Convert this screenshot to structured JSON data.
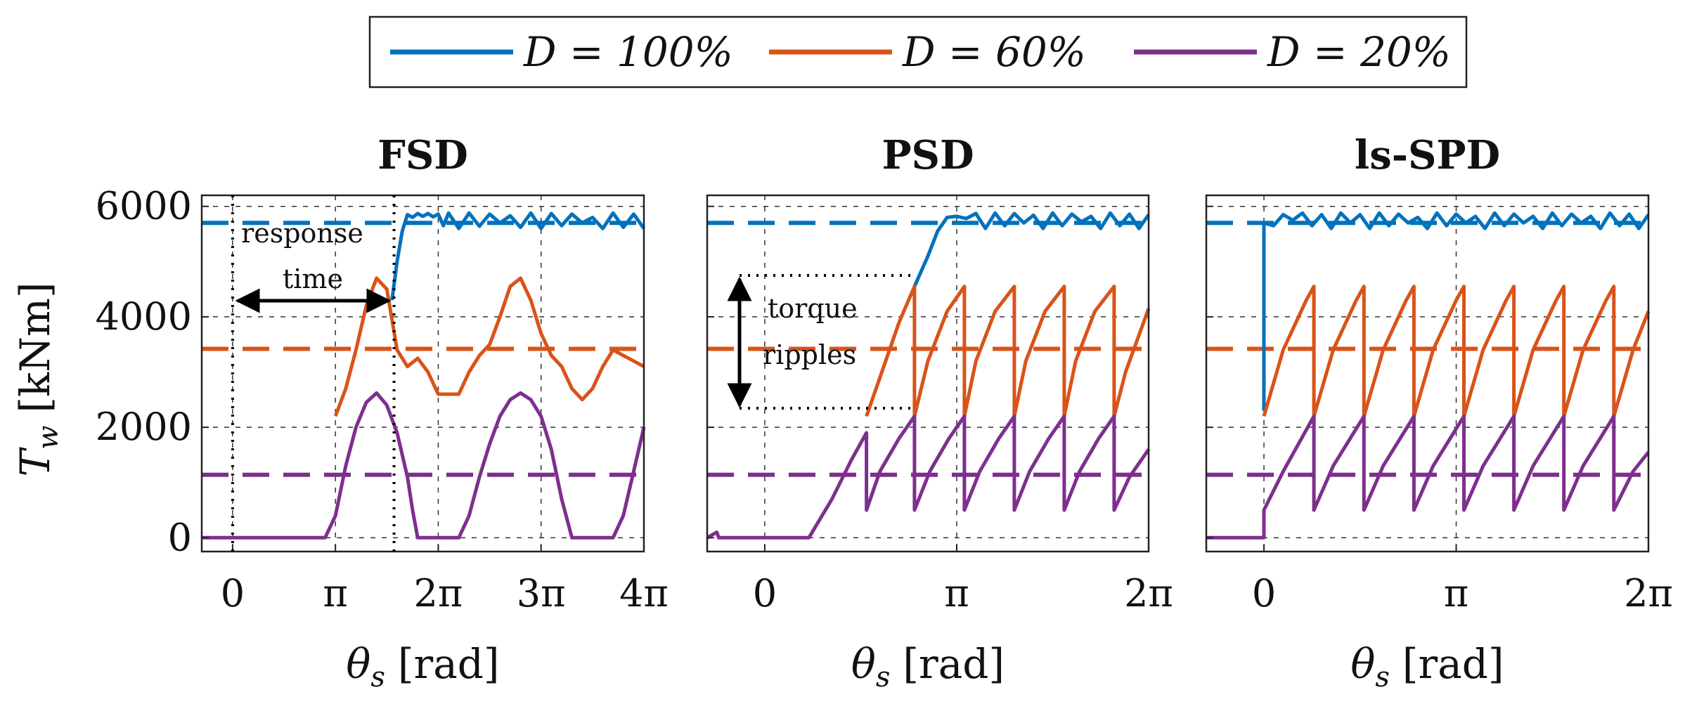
{
  "legend": {
    "placement": "top-center",
    "entries": [
      {
        "label": "D = 100%",
        "color": "#0072BD"
      },
      {
        "label": "D = 60%",
        "color": "#D95319"
      },
      {
        "label": "D = 20%",
        "color": "#7E2F8E"
      }
    ]
  },
  "ylabel": "T_w [kNm]",
  "ylabel_italic": "T",
  "ylabel_sub": "w",
  "ylabel_unit": "[kNm]",
  "xlabel_theta": "θ",
  "xlabel_sub": "s",
  "xlabel_unit": "[rad]",
  "annotations": {
    "response_1": "response",
    "response_2": "time",
    "torque_1": "torque",
    "torque_2": "ripples"
  },
  "chart_data": [
    {
      "type": "line",
      "title": "FSD",
      "xlabel": "θs [rad]",
      "ylabel": "Tw [kNm]",
      "xlim_pi": [
        -0.3,
        4
      ],
      "ylim": [
        -250,
        6200
      ],
      "xticks": [
        0,
        1,
        2,
        3,
        4
      ],
      "xtick_labels": [
        "0",
        "π",
        "2π",
        "3π",
        "4π"
      ],
      "yticks": [
        0,
        2000,
        4000,
        6000
      ],
      "ytick_labels": [
        "0",
        "2000",
        "4000",
        "6000"
      ],
      "average_lines": [
        5700,
        3420,
        1140
      ],
      "series": [
        {
          "name": "D = 100%",
          "x_pi": [
            1.55,
            1.6,
            1.65,
            1.7,
            1.75,
            1.8,
            1.85,
            1.9,
            1.95,
            2.0,
            2.05,
            2.1,
            2.2,
            2.3,
            2.4,
            2.5,
            2.6,
            2.7,
            2.8,
            2.9,
            3.0,
            3.1,
            3.2,
            3.3,
            3.4,
            3.5,
            3.6,
            3.7,
            3.8,
            3.9,
            4.0
          ],
          "y": [
            4300,
            5000,
            5550,
            5850,
            5800,
            5870,
            5820,
            5870,
            5810,
            5860,
            5650,
            5880,
            5600,
            5880,
            5640,
            5860,
            5700,
            5830,
            5620,
            5880,
            5600,
            5870,
            5650,
            5860,
            5700,
            5800,
            5600,
            5880,
            5620,
            5860,
            5600
          ]
        },
        {
          "name": "D = 60%",
          "x_pi": [
            1.0,
            1.1,
            1.2,
            1.3,
            1.4,
            1.5,
            1.6,
            1.7,
            1.8,
            1.9,
            2.0,
            2.1,
            2.2,
            2.3,
            2.4,
            2.5,
            2.6,
            2.7,
            2.8,
            2.9,
            3.0,
            3.1,
            3.2,
            3.3,
            3.4,
            3.5,
            3.6,
            3.7,
            3.8,
            3.9,
            4.0
          ],
          "y": [
            2200,
            2700,
            3400,
            4200,
            4700,
            4500,
            3400,
            3100,
            3250,
            3000,
            2600,
            2600,
            2600,
            3000,
            3300,
            3500,
            4000,
            4550,
            4700,
            4300,
            3700,
            3300,
            3100,
            2700,
            2500,
            2700,
            3100,
            3400,
            3300,
            3200,
            3100
          ]
        },
        {
          "name": "D = 20%",
          "x_pi": [
            -0.3,
            0.9,
            1.0,
            1.1,
            1.2,
            1.3,
            1.4,
            1.5,
            1.6,
            1.7,
            1.75,
            1.8,
            2.2,
            2.3,
            2.4,
            2.5,
            2.6,
            2.7,
            2.8,
            2.9,
            3.0,
            3.1,
            3.2,
            3.3,
            3.7,
            3.8,
            3.9,
            4.0
          ],
          "y": [
            0,
            0,
            400,
            1300,
            2000,
            2450,
            2620,
            2400,
            1900,
            1100,
            500,
            0,
            0,
            400,
            1100,
            1700,
            2200,
            2500,
            2620,
            2500,
            2200,
            1600,
            700,
            0,
            0,
            400,
            1200,
            2000
          ]
        }
      ]
    },
    {
      "type": "line",
      "title": "PSD",
      "xlabel": "θs [rad]",
      "ylabel": "",
      "xlim_pi": [
        -0.3,
        2
      ],
      "ylim": [
        -250,
        6200
      ],
      "xticks": [
        0,
        1,
        2
      ],
      "xtick_labels": [
        "0",
        "π",
        "2π"
      ],
      "yticks": [
        0,
        2000,
        4000,
        6000
      ],
      "average_lines": [
        5700,
        3420,
        1140
      ],
      "series": [
        {
          "name": "D = 100%",
          "x_pi": [
            0.78,
            0.85,
            0.9,
            0.95,
            1.0,
            1.05,
            1.1,
            1.15,
            1.2,
            1.25,
            1.3,
            1.35,
            1.4,
            1.45,
            1.5,
            1.55,
            1.6,
            1.65,
            1.7,
            1.75,
            1.8,
            1.85,
            1.9,
            1.95,
            2.0
          ],
          "y": [
            4550,
            5100,
            5550,
            5800,
            5820,
            5780,
            5870,
            5600,
            5880,
            5650,
            5870,
            5700,
            5840,
            5600,
            5880,
            5650,
            5860,
            5720,
            5820,
            5600,
            5880,
            5650,
            5860,
            5600,
            5850
          ]
        },
        {
          "name": "D = 60%",
          "x_pi": [
            0.53,
            0.6,
            0.7,
            0.78,
            0.78,
            0.85,
            0.95,
            1.04,
            1.04,
            1.1,
            1.2,
            1.3,
            1.3,
            1.36,
            1.46,
            1.56,
            1.56,
            1.62,
            1.72,
            1.82,
            1.82,
            1.88,
            2.0
          ],
          "y": [
            2200,
            2900,
            3900,
            4550,
            2200,
            3200,
            4100,
            4550,
            2200,
            3200,
            4100,
            4550,
            2200,
            3200,
            4100,
            4550,
            2200,
            3200,
            4100,
            4550,
            2200,
            3000,
            4150
          ]
        },
        {
          "name": "D = 20%",
          "x_pi": [
            -0.3,
            -0.25,
            -0.24,
            0.23,
            0.35,
            0.45,
            0.53,
            0.53,
            0.6,
            0.7,
            0.78,
            0.78,
            0.86,
            0.96,
            1.04,
            1.04,
            1.12,
            1.22,
            1.3,
            1.3,
            1.38,
            1.48,
            1.56,
            1.56,
            1.64,
            1.74,
            1.82,
            1.82,
            1.9,
            2.0
          ],
          "y": [
            0,
            100,
            0,
            0,
            700,
            1400,
            1900,
            500,
            1200,
            1800,
            2200,
            500,
            1200,
            1800,
            2200,
            500,
            1200,
            1800,
            2200,
            500,
            1200,
            1800,
            2200,
            500,
            1200,
            1800,
            2200,
            500,
            1100,
            1600
          ]
        }
      ]
    },
    {
      "type": "line",
      "title": "ls-SPD",
      "xlabel": "θs [rad]",
      "ylabel": "",
      "xlim_pi": [
        -0.3,
        2
      ],
      "ylim": [
        -250,
        6200
      ],
      "xticks": [
        0,
        1,
        2
      ],
      "xtick_labels": [
        "0",
        "π",
        "2π"
      ],
      "yticks": [
        0,
        2000,
        4000,
        6000
      ],
      "average_lines": [
        5700,
        3420,
        1140
      ],
      "series": [
        {
          "name": "D = 100%",
          "x_pi": [
            0.0,
            0.0,
            0.05,
            0.1,
            0.15,
            0.2,
            0.25,
            0.3,
            0.35,
            0.4,
            0.45,
            0.5,
            0.55,
            0.6,
            0.65,
            0.7,
            0.75,
            0.8,
            0.85,
            0.9,
            0.95,
            1.0,
            1.05,
            1.1,
            1.15,
            1.2,
            1.25,
            1.3,
            1.35,
            1.4,
            1.45,
            1.5,
            1.55,
            1.6,
            1.65,
            1.7,
            1.75,
            1.8,
            1.85,
            1.9,
            1.95,
            2.0
          ],
          "y": [
            2300,
            5700,
            5650,
            5850,
            5750,
            5880,
            5650,
            5850,
            5600,
            5880,
            5700,
            5850,
            5600,
            5880,
            5650,
            5860,
            5700,
            5800,
            5600,
            5880,
            5650,
            5860,
            5700,
            5820,
            5600,
            5880,
            5650,
            5860,
            5700,
            5820,
            5600,
            5880,
            5650,
            5860,
            5700,
            5820,
            5600,
            5880,
            5650,
            5860,
            5600,
            5850
          ]
        },
        {
          "name": "D = 60%",
          "x_pi": [
            0.0,
            0.1,
            0.22,
            0.26,
            0.26,
            0.36,
            0.48,
            0.52,
            0.52,
            0.62,
            0.74,
            0.78,
            0.78,
            0.88,
            1.0,
            1.04,
            1.04,
            1.14,
            1.26,
            1.3,
            1.3,
            1.4,
            1.52,
            1.56,
            1.56,
            1.66,
            1.78,
            1.82,
            1.82,
            1.92,
            2.0
          ],
          "y": [
            2200,
            3400,
            4300,
            4550,
            2200,
            3400,
            4300,
            4550,
            2200,
            3400,
            4300,
            4550,
            2200,
            3400,
            4300,
            4550,
            2200,
            3400,
            4300,
            4550,
            2200,
            3400,
            4300,
            4550,
            2200,
            3400,
            4300,
            4550,
            2200,
            3400,
            4100
          ]
        },
        {
          "name": "D = 20%",
          "x_pi": [
            -0.3,
            0.0,
            0.0,
            0.1,
            0.26,
            0.26,
            0.36,
            0.52,
            0.52,
            0.62,
            0.78,
            0.78,
            0.88,
            1.04,
            1.04,
            1.14,
            1.3,
            1.3,
            1.4,
            1.56,
            1.56,
            1.66,
            1.82,
            1.82,
            1.92,
            2.0
          ],
          "y": [
            0,
            0,
            500,
            1200,
            2200,
            500,
            1300,
            2200,
            500,
            1300,
            2200,
            500,
            1300,
            2200,
            500,
            1300,
            2200,
            500,
            1300,
            2200,
            500,
            1300,
            2200,
            500,
            1200,
            1550
          ]
        }
      ]
    }
  ]
}
